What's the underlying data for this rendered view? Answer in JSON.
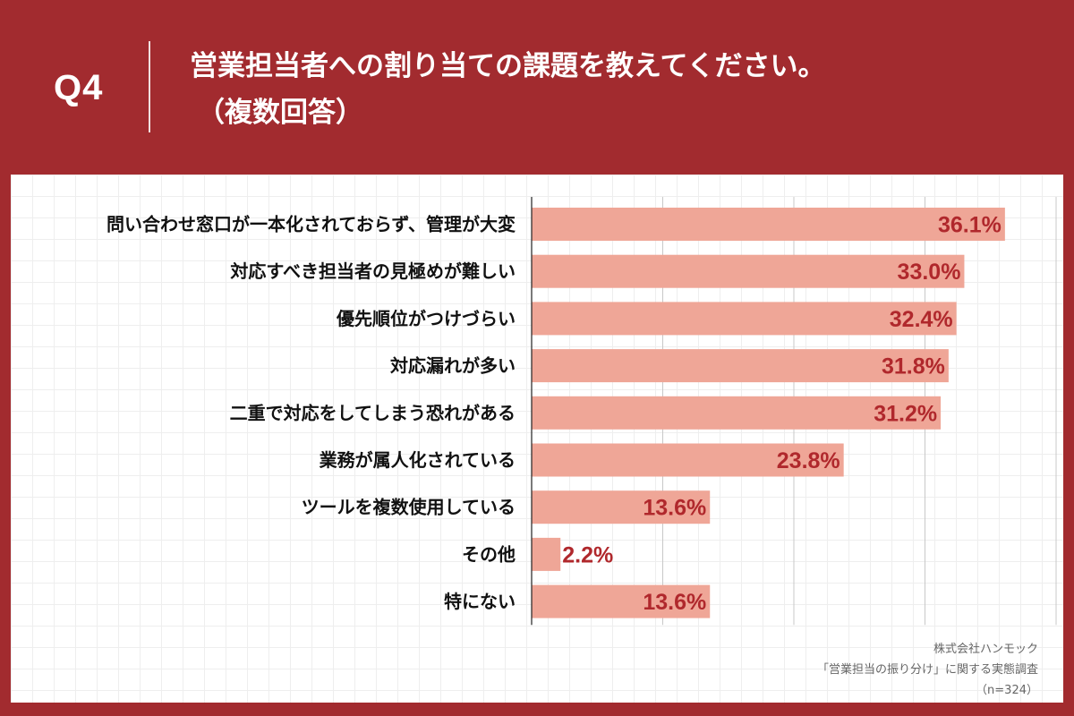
{
  "header": {
    "question_number": "Q4",
    "title_line1": "営業担当者への割り当ての課題を教えてください。",
    "title_line2": "（複数回答）"
  },
  "colors": {
    "background": "#a22b2f",
    "bar": "#efa697",
    "value_text": "#b0282c"
  },
  "chart_data": {
    "type": "bar",
    "orientation": "horizontal",
    "title": "営業担当者への割り当ての課題を教えてください。（複数回答）",
    "categories": [
      "問い合わせ窓口が一本化されておらず、管理が大変",
      "対応すべき担当者の見極めが難しい",
      "優先順位がつけづらい",
      "対応漏れが多い",
      "二重で対応をしてしまう恐れがある",
      "業務が属人化されている",
      "ツールを複数使用している",
      "その他",
      "特にない"
    ],
    "values": [
      36.1,
      33.0,
      32.4,
      31.8,
      31.2,
      23.8,
      13.6,
      2.2,
      13.6
    ],
    "value_labels": [
      "36.1%",
      "33.0%",
      "32.4%",
      "31.8%",
      "31.2%",
      "23.8%",
      "13.6%",
      "2.2%",
      "13.6%"
    ],
    "unit": "%",
    "xlim": [
      0,
      40
    ],
    "grid_interval": 10,
    "xlabel": "",
    "ylabel": ""
  },
  "source": {
    "company": "株式会社ハンモック",
    "survey": "「営業担当の振り分け」に関する実態調査",
    "sample": "（n=324）"
  }
}
